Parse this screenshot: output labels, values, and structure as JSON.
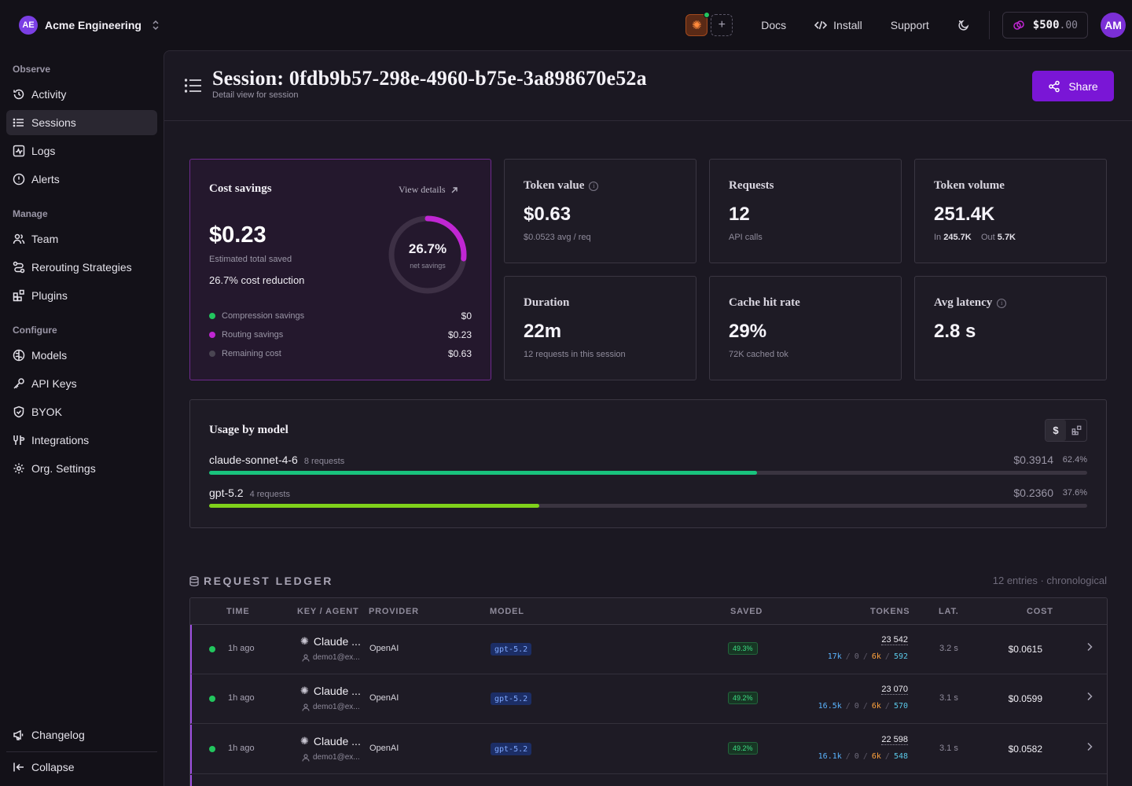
{
  "topbar": {
    "org_initials": "AE",
    "org_name": "Acme Engineering",
    "links": {
      "docs": "Docs",
      "install": "Install",
      "support": "Support"
    },
    "credits_dollars": "$500",
    "credits_cents": ".00",
    "user_initials": "AM"
  },
  "sidebar": {
    "sections": {
      "observe": "Observe",
      "manage": "Manage",
      "configure": "Configure"
    },
    "items": {
      "activity": "Activity",
      "sessions": "Sessions",
      "logs": "Logs",
      "alerts": "Alerts",
      "team": "Team",
      "rerouting": "Rerouting Strategies",
      "plugins": "Plugins",
      "models": "Models",
      "api_keys": "API Keys",
      "byok": "BYOK",
      "integrations": "Integrations",
      "org_settings": "Org. Settings",
      "changelog": "Changelog",
      "collapse": "Collapse"
    }
  },
  "header": {
    "title": "Session: 0fdb9b57-298e-4960-b75e-3a898670e52a",
    "subtitle": "Detail view for session",
    "share_label": "Share"
  },
  "savings": {
    "title": "Cost savings",
    "view_details": "View details",
    "amount": "$0.23",
    "amount_label": "Estimated total saved",
    "reduction": "26.7% cost reduction",
    "donut_pct": "26.7%",
    "donut_fraction": 0.267,
    "donut_label": "net savings",
    "rows": [
      {
        "label": "Compression savings",
        "value": "$0",
        "color": "#22c55e"
      },
      {
        "label": "Routing savings",
        "value": "$0.23",
        "color": "#c026d3"
      },
      {
        "label": "Remaining cost",
        "value": "$0.63",
        "color": "#4a4552"
      }
    ]
  },
  "stats": {
    "token_value": {
      "label": "Token value",
      "value": "$0.63",
      "sub": "$0.0523 avg / req"
    },
    "requests": {
      "label": "Requests",
      "value": "12",
      "sub": "API calls"
    },
    "token_volume": {
      "label": "Token volume",
      "value": "251.4K",
      "in_label": "In",
      "in_value": "245.7K",
      "out_label": "Out",
      "out_value": "5.7K"
    },
    "duration": {
      "label": "Duration",
      "value": "22m",
      "sub": "12 requests in this session"
    },
    "cache_hit": {
      "label": "Cache hit rate",
      "value": "29%",
      "sub": "72K cached tok"
    },
    "avg_latency": {
      "label": "Avg latency",
      "value": "2.8 s"
    }
  },
  "usage": {
    "title": "Usage by model",
    "toggle_dollar": "$",
    "models": [
      {
        "name": "claude-sonnet-4-6",
        "requests": "8 requests",
        "cost": "$0.3914",
        "pct": "62.4%",
        "share": 0.624,
        "color": "#19c37d"
      },
      {
        "name": "gpt-5.2",
        "requests": "4 requests",
        "cost": "$0.2360",
        "pct": "37.6%",
        "share": 0.376,
        "color": "#7fd11b"
      }
    ]
  },
  "ledger": {
    "title": "REQUEST LEDGER",
    "meta": "12 entries · chronological",
    "columns": {
      "time": "TIME",
      "key": "KEY / AGENT",
      "provider": "PROVIDER",
      "model": "MODEL",
      "saved": "SAVED",
      "tokens": "TOKENS",
      "lat": "LAT.",
      "cost": "COST"
    },
    "rows": [
      {
        "time": "1h ago",
        "agent": "Claude ...",
        "key": "demo1@ex...",
        "provider": "OpenAI",
        "model": "gpt-5.2",
        "saved": "49.3%",
        "tokens": "23 542",
        "t_in": "17k",
        "t_zero": "0",
        "t_cache": "6k",
        "t_out": "592",
        "lat": "3.2 s",
        "cost": "$0.0615"
      },
      {
        "time": "1h ago",
        "agent": "Claude ...",
        "key": "demo1@ex...",
        "provider": "OpenAI",
        "model": "gpt-5.2",
        "saved": "49.2%",
        "tokens": "23 070",
        "t_in": "16.5k",
        "t_zero": "0",
        "t_cache": "6k",
        "t_out": "570",
        "lat": "3.1 s",
        "cost": "$0.0599"
      },
      {
        "time": "1h ago",
        "agent": "Claude ...",
        "key": "demo1@ex...",
        "provider": "OpenAI",
        "model": "gpt-5.2",
        "saved": "49.2%",
        "tokens": "22 598",
        "t_in": "16.1k",
        "t_zero": "0",
        "t_cache": "6k",
        "t_out": "548",
        "lat": "3.1 s",
        "cost": "$0.0582"
      }
    ]
  }
}
